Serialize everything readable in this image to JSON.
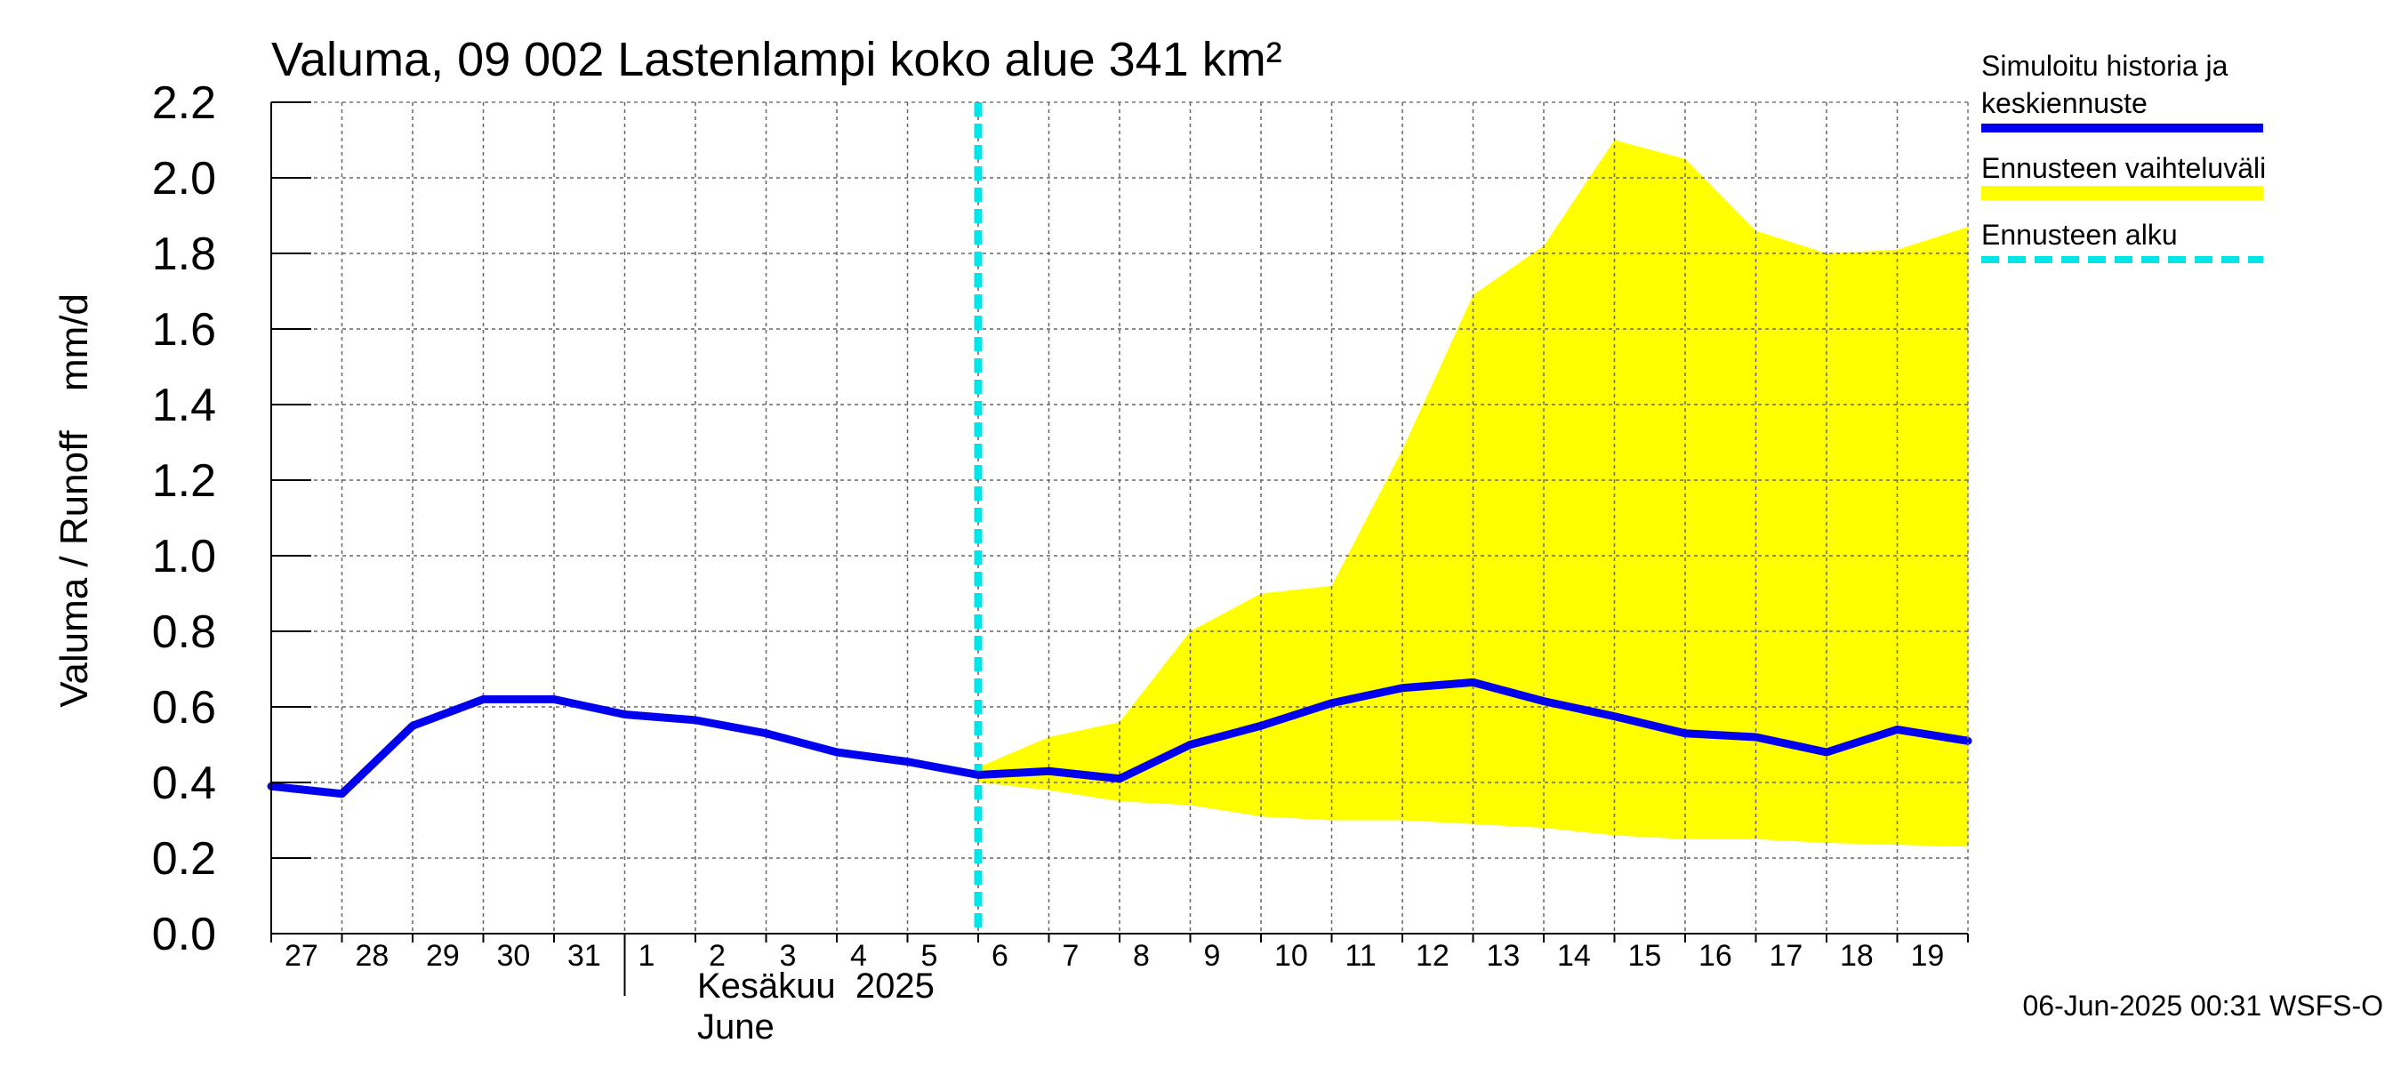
{
  "chart_data": {
    "type": "line",
    "title": "Valuma, 09 002 Lastenlampi koko alue 341 km²",
    "ylabel_left": "Valuma / Runoff",
    "ylabel_unit": "mm/d",
    "ylim": [
      0.0,
      2.2
    ],
    "yticks": [
      "0.0",
      "0.2",
      "0.4",
      "0.6",
      "0.8",
      "1.0",
      "1.2",
      "1.4",
      "1.6",
      "1.8",
      "2.0",
      "2.2"
    ],
    "ytick_values": [
      0.0,
      0.2,
      0.4,
      0.6,
      0.8,
      1.0,
      1.2,
      1.4,
      1.6,
      1.8,
      2.0,
      2.2
    ],
    "x_labels": [
      "27",
      "28",
      "29",
      "30",
      "31",
      "1",
      "2",
      "3",
      "4",
      "5",
      "6",
      "7",
      "8",
      "9",
      "10",
      "11",
      "12",
      "13",
      "14",
      "15",
      "16",
      "17",
      "18",
      "19"
    ],
    "month_label_fi": "Kesäkuu  2025",
    "month_label_en": "June",
    "forecast_start_index": 10,
    "series": [
      {
        "name": "Simuloitu historia ja keskiennuste",
        "color": "#0000ee",
        "x": [
          0,
          1,
          2,
          3,
          4,
          5,
          6,
          7,
          8,
          9,
          10,
          11,
          12,
          13,
          14,
          15,
          16,
          17,
          18,
          19,
          20,
          21,
          22,
          23,
          24
        ],
        "values": [
          0.39,
          0.37,
          0.55,
          0.62,
          0.62,
          0.58,
          0.565,
          0.53,
          0.48,
          0.455,
          0.42,
          0.43,
          0.41,
          0.5,
          0.55,
          0.61,
          0.65,
          0.665,
          0.615,
          0.575,
          0.53,
          0.52,
          0.48,
          0.54,
          0.51
        ]
      }
    ],
    "band": {
      "name": "Ennusteen vaihteluväli",
      "color": "#ffff00",
      "x": [
        10,
        11,
        12,
        13,
        14,
        15,
        16,
        17,
        18,
        19,
        20,
        21,
        22,
        23,
        24
      ],
      "upper": [
        0.44,
        0.52,
        0.56,
        0.8,
        0.9,
        0.92,
        1.28,
        1.69,
        1.82,
        2.1,
        2.05,
        1.86,
        1.8,
        1.81,
        1.87
      ],
      "lower": [
        0.4,
        0.38,
        0.35,
        0.34,
        0.31,
        0.3,
        0.3,
        0.29,
        0.28,
        0.26,
        0.25,
        0.25,
        0.24,
        0.235,
        0.23
      ]
    },
    "legend": [
      {
        "label_line1": "Simuloitu historia ja",
        "label_line2": "keskiennuste",
        "color": "#0000ee",
        "style": "solid"
      },
      {
        "label_line1": "Ennusteen vaihteluväli",
        "label_line2": "",
        "color": "#ffff00",
        "style": "solid"
      },
      {
        "label_line1": "Ennusteen alku",
        "label_line2": "",
        "color": "#00e5e5",
        "style": "dashed"
      }
    ],
    "footer": "06-Jun-2025 00:31 WSFS-O"
  }
}
